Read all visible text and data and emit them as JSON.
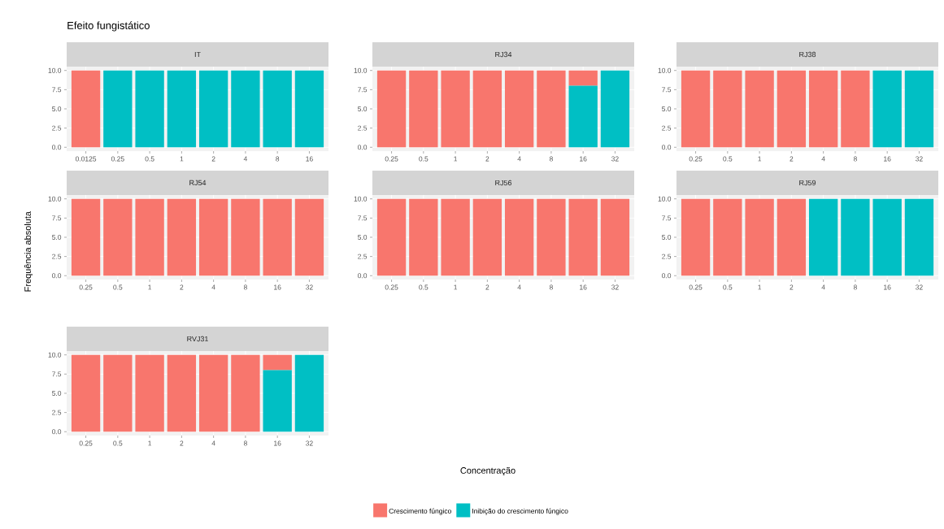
{
  "chart_data": [
    {
      "type": "bar",
      "title": "Efeito fungistático",
      "subtitle": "IT",
      "categories": [
        "0.0125",
        "0.25",
        "0.5",
        "1",
        "2",
        "4",
        "8",
        "16"
      ],
      "stacked": true,
      "grid": true,
      "ylim": [
        -0.5,
        10.5
      ],
      "yticks": [
        {
          "value": 0,
          "label": "0.0"
        },
        {
          "value": 2.5,
          "label": "2.5"
        },
        {
          "value": 5,
          "label": "5.0"
        },
        {
          "value": 7.5,
          "label": "7.5"
        },
        {
          "value": 10,
          "label": "10.0"
        }
      ],
      "series": [
        {
          "color": "#00bfc4",
          "values": [
            0,
            10,
            10,
            10,
            10,
            10,
            10,
            10
          ]
        },
        {
          "color": "#f8766d",
          "values": [
            10,
            0,
            0,
            0,
            0,
            0,
            0,
            0
          ]
        }
      ]
    },
    {
      "type": "bar",
      "subtitle": "RJ34",
      "categories": [
        "0.25",
        "0.5",
        "1",
        "2",
        "4",
        "8",
        "16",
        "32"
      ],
      "stacked": true,
      "grid": true,
      "ylim": [
        -0.5,
        10.5
      ],
      "yticks": [
        {
          "value": 0,
          "label": "0.0"
        },
        {
          "value": 2.5,
          "label": "2.5"
        },
        {
          "value": 5,
          "label": "5.0"
        },
        {
          "value": 7.5,
          "label": "7.5"
        },
        {
          "value": 10,
          "label": "10.0"
        }
      ],
      "series": [
        {
          "color": "#00bfc4",
          "values": [
            0,
            0,
            0,
            0,
            0,
            0,
            8,
            10
          ]
        },
        {
          "color": "#f8766d",
          "values": [
            10,
            10,
            10,
            10,
            10,
            10,
            2,
            0
          ]
        }
      ]
    },
    {
      "type": "bar",
      "subtitle": "RJ38",
      "categories": [
        "0.25",
        "0.5",
        "1",
        "2",
        "4",
        "8",
        "16",
        "32"
      ],
      "stacked": true,
      "grid": true,
      "ylim": [
        -0.5,
        10.5
      ],
      "yticks": [
        {
          "value": 0,
          "label": "0.0"
        },
        {
          "value": 2.5,
          "label": "2.5"
        },
        {
          "value": 5,
          "label": "5.0"
        },
        {
          "value": 7.5,
          "label": "7.5"
        },
        {
          "value": 10,
          "label": "10.0"
        }
      ],
      "series": [
        {
          "color": "#00bfc4",
          "values": [
            0,
            0,
            0,
            0,
            0,
            0,
            10,
            10
          ]
        },
        {
          "color": "#f8766d",
          "values": [
            10,
            10,
            10,
            10,
            10,
            10,
            0,
            0
          ]
        }
      ]
    },
    {
      "type": "bar",
      "subtitle": "RJ54",
      "ylabel": "Frequência absoluta",
      "categories": [
        "0.25",
        "0.5",
        "1",
        "2",
        "4",
        "8",
        "16",
        "32"
      ],
      "stacked": true,
      "grid": true,
      "ylim": [
        -0.5,
        10.5
      ],
      "yticks": [
        {
          "value": 0,
          "label": "0.0"
        },
        {
          "value": 2.5,
          "label": "2.5"
        },
        {
          "value": 5,
          "label": "5.0"
        },
        {
          "value": 7.5,
          "label": "7.5"
        },
        {
          "value": 10,
          "label": "10.0"
        }
      ],
      "series": [
        {
          "color": "#00bfc4",
          "values": [
            0,
            0,
            0,
            0,
            0,
            0,
            0,
            0
          ]
        },
        {
          "color": "#f8766d",
          "values": [
            10,
            10,
            10,
            10,
            10,
            10,
            10,
            10
          ]
        }
      ]
    },
    {
      "type": "bar",
      "subtitle": "RJ56",
      "xlabel": "Concentração",
      "legend": "bottom",
      "categories": [
        "0.25",
        "0.5",
        "1",
        "2",
        "4",
        "8",
        "16",
        "32"
      ],
      "stacked": true,
      "grid": true,
      "ylim": [
        -0.5,
        10.5
      ],
      "yticks": [
        {
          "value": 0,
          "label": "0.0"
        },
        {
          "value": 2.5,
          "label": "2.5"
        },
        {
          "value": 5,
          "label": "5.0"
        },
        {
          "value": 7.5,
          "label": "7.5"
        },
        {
          "value": 10,
          "label": "10.0"
        }
      ],
      "series": [
        {
          "name": "Inibição do crescimento fúngico",
          "color": "#00bfc4",
          "values": [
            0,
            0,
            0,
            0,
            0,
            0,
            0,
            0
          ]
        },
        {
          "name": "Crescimento fúngico",
          "color": "#f8766d",
          "values": [
            10,
            10,
            10,
            10,
            10,
            10,
            10,
            10
          ]
        }
      ]
    },
    {
      "type": "bar",
      "subtitle": "RJ59",
      "categories": [
        "0.25",
        "0.5",
        "1",
        "2",
        "4",
        "8",
        "16",
        "32"
      ],
      "stacked": true,
      "grid": true,
      "ylim": [
        -0.5,
        10.5
      ],
      "yticks": [
        {
          "value": 0,
          "label": "0.0"
        },
        {
          "value": 2.5,
          "label": "2.5"
        },
        {
          "value": 5,
          "label": "5.0"
        },
        {
          "value": 7.5,
          "label": "7.5"
        },
        {
          "value": 10,
          "label": "10.0"
        }
      ],
      "series": [
        {
          "color": "#00bfc4",
          "values": [
            0,
            0,
            0,
            0,
            10,
            10,
            10,
            10
          ]
        },
        {
          "color": "#f8766d",
          "values": [
            10,
            10,
            10,
            10,
            0,
            0,
            0,
            0
          ]
        }
      ]
    },
    {
      "type": "bar",
      "subtitle": "RVJ31",
      "categories": [
        "0.25",
        "0.5",
        "1",
        "2",
        "4",
        "8",
        "16",
        "32"
      ],
      "stacked": true,
      "grid": true,
      "ylim": [
        -0.5,
        10.5
      ],
      "yticks": [
        {
          "value": 0,
          "label": "0.0"
        },
        {
          "value": 2.5,
          "label": "2.5"
        },
        {
          "value": 5,
          "label": "5.0"
        },
        {
          "value": 7.5,
          "label": "7.5"
        },
        {
          "value": 10,
          "label": "10.0"
        }
      ],
      "series": [
        {
          "color": "#00bfc4",
          "values": [
            0,
            0,
            0,
            0,
            0,
            0,
            8,
            10
          ]
        },
        {
          "color": "#f8766d",
          "values": [
            10,
            10,
            10,
            10,
            10,
            10,
            2,
            0
          ]
        }
      ]
    }
  ]
}
